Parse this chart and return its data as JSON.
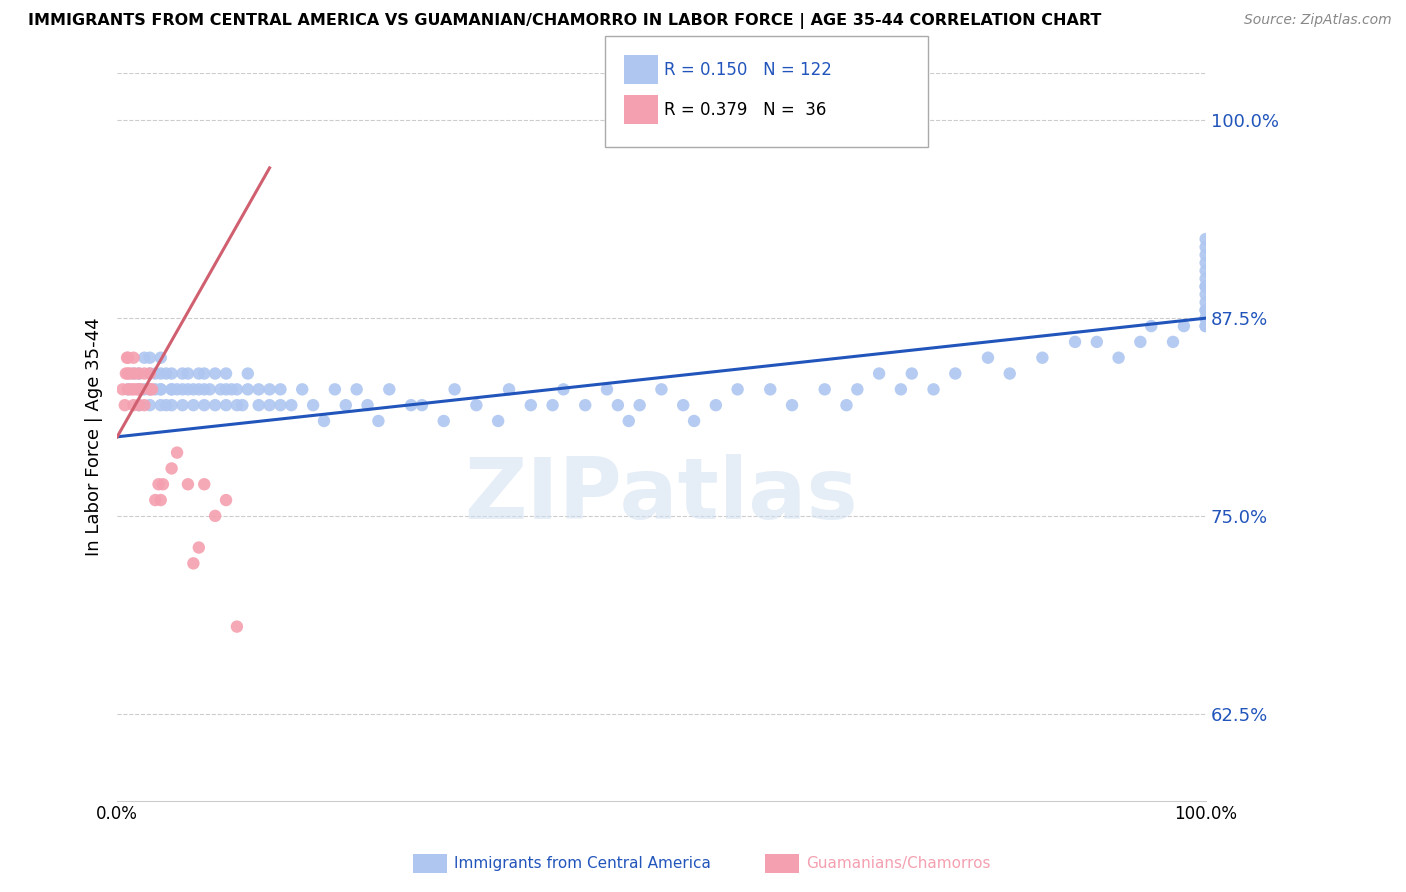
{
  "title": "IMMIGRANTS FROM CENTRAL AMERICA VS GUAMANIAN/CHAMORRO IN LABOR FORCE | AGE 35-44 CORRELATION CHART",
  "source": "Source: ZipAtlas.com",
  "ylabel": "In Labor Force | Age 35-44",
  "yticklabels": [
    "62.5%",
    "75.0%",
    "87.5%",
    "100.0%"
  ],
  "ytick_vals": [
    0.625,
    0.75,
    0.875,
    1.0
  ],
  "xlim": [
    0.0,
    1.0
  ],
  "ylim": [
    0.57,
    1.03
  ],
  "watermark": "ZIPatlas",
  "legend_blue_R": "R = 0.150",
  "legend_blue_N": "N = 122",
  "legend_pink_R": "R = 0.379",
  "legend_pink_N": "N =  36",
  "blue_label": "Immigrants from Central America",
  "pink_label": "Guamanians/Chamorros",
  "blue_color": "#aec6f0",
  "pink_color": "#f4a0b0",
  "trend_blue_color": "#2255bb",
  "trend_pink_color": "#d06070",
  "blue_scatter_x": [
    0.01,
    0.015,
    0.02,
    0.02,
    0.02,
    0.025,
    0.025,
    0.03,
    0.03,
    0.03,
    0.03,
    0.035,
    0.035,
    0.04,
    0.04,
    0.04,
    0.04,
    0.04,
    0.045,
    0.045,
    0.05,
    0.05,
    0.05,
    0.05,
    0.055,
    0.06,
    0.06,
    0.06,
    0.065,
    0.065,
    0.07,
    0.07,
    0.075,
    0.075,
    0.08,
    0.08,
    0.08,
    0.085,
    0.09,
    0.09,
    0.095,
    0.1,
    0.1,
    0.1,
    0.105,
    0.11,
    0.11,
    0.115,
    0.12,
    0.12,
    0.13,
    0.13,
    0.14,
    0.14,
    0.15,
    0.15,
    0.16,
    0.17,
    0.18,
    0.19,
    0.2,
    0.21,
    0.22,
    0.23,
    0.24,
    0.25,
    0.27,
    0.28,
    0.3,
    0.31,
    0.33,
    0.35,
    0.36,
    0.38,
    0.4,
    0.41,
    0.43,
    0.45,
    0.46,
    0.47,
    0.48,
    0.5,
    0.52,
    0.53,
    0.55,
    0.57,
    0.6,
    0.62,
    0.65,
    0.67,
    0.68,
    0.7,
    0.72,
    0.73,
    0.75,
    0.77,
    0.8,
    0.82,
    0.85,
    0.88,
    0.9,
    0.92,
    0.94,
    0.95,
    0.97,
    0.98,
    1.0,
    1.0,
    1.0,
    1.0,
    1.0,
    1.0,
    1.0,
    1.0,
    1.0,
    1.0,
    1.0,
    1.0,
    1.0,
    1.0,
    1.0,
    1.0
  ],
  "blue_scatter_y": [
    0.83,
    0.84,
    0.83,
    0.82,
    0.84,
    0.83,
    0.85,
    0.82,
    0.83,
    0.84,
    0.85,
    0.83,
    0.84,
    0.82,
    0.83,
    0.84,
    0.85,
    0.83,
    0.84,
    0.82,
    0.83,
    0.84,
    0.83,
    0.82,
    0.83,
    0.83,
    0.84,
    0.82,
    0.83,
    0.84,
    0.82,
    0.83,
    0.84,
    0.83,
    0.82,
    0.83,
    0.84,
    0.83,
    0.82,
    0.84,
    0.83,
    0.82,
    0.83,
    0.84,
    0.83,
    0.82,
    0.83,
    0.82,
    0.83,
    0.84,
    0.82,
    0.83,
    0.82,
    0.83,
    0.82,
    0.83,
    0.82,
    0.83,
    0.82,
    0.81,
    0.83,
    0.82,
    0.83,
    0.82,
    0.81,
    0.83,
    0.82,
    0.82,
    0.81,
    0.83,
    0.82,
    0.81,
    0.83,
    0.82,
    0.82,
    0.83,
    0.82,
    0.83,
    0.82,
    0.81,
    0.82,
    0.83,
    0.82,
    0.81,
    0.82,
    0.83,
    0.83,
    0.82,
    0.83,
    0.82,
    0.83,
    0.84,
    0.83,
    0.84,
    0.83,
    0.84,
    0.85,
    0.84,
    0.85,
    0.86,
    0.86,
    0.85,
    0.86,
    0.87,
    0.86,
    0.87,
    0.895,
    0.88,
    0.875,
    0.87,
    0.87,
    0.875,
    0.88,
    0.885,
    0.89,
    0.895,
    0.9,
    0.905,
    0.91,
    0.915,
    0.92,
    0.925
  ],
  "pink_scatter_x": [
    0.005,
    0.007,
    0.008,
    0.009,
    0.01,
    0.01,
    0.01,
    0.012,
    0.013,
    0.015,
    0.015,
    0.015,
    0.016,
    0.018,
    0.02,
    0.02,
    0.02,
    0.022,
    0.025,
    0.025,
    0.03,
    0.03,
    0.032,
    0.035,
    0.038,
    0.04,
    0.042,
    0.05,
    0.055,
    0.065,
    0.07,
    0.075,
    0.08,
    0.09,
    0.1,
    0.11
  ],
  "pink_scatter_y": [
    0.83,
    0.82,
    0.84,
    0.85,
    0.83,
    0.84,
    0.85,
    0.84,
    0.83,
    0.82,
    0.83,
    0.85,
    0.84,
    0.83,
    0.82,
    0.83,
    0.84,
    0.83,
    0.82,
    0.84,
    0.83,
    0.84,
    0.83,
    0.76,
    0.77,
    0.76,
    0.77,
    0.78,
    0.79,
    0.77,
    0.72,
    0.73,
    0.77,
    0.75,
    0.76,
    0.68
  ],
  "blue_trend_x": [
    0.0,
    1.0
  ],
  "blue_trend_y": [
    0.8,
    0.875
  ],
  "pink_trend_x": [
    0.0,
    0.14
  ],
  "pink_trend_y": [
    0.8,
    0.97
  ]
}
